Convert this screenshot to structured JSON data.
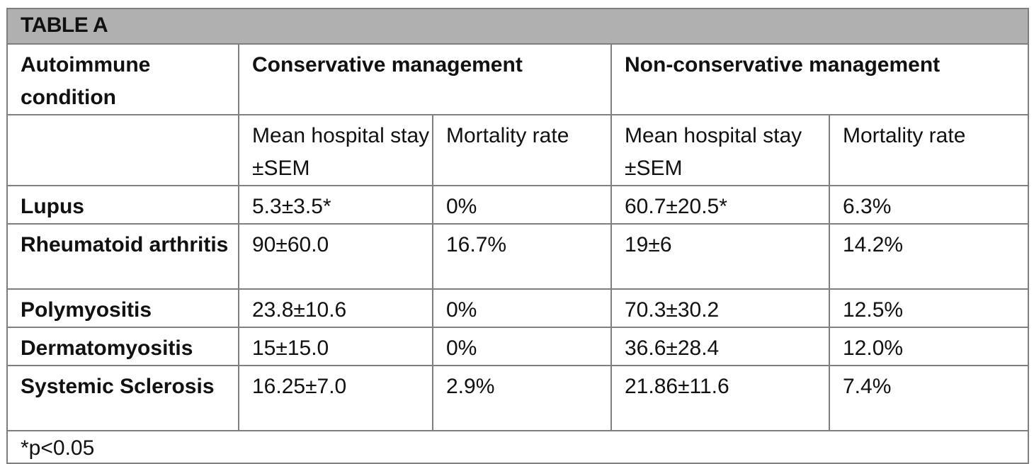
{
  "table": {
    "title": "TABLE A",
    "headers": {
      "condition": "Autoimmune condition",
      "conservative": "Conservative management",
      "nonconservative": "Non-conservative management"
    },
    "subheaders": {
      "cons_stay": "Mean hospital stay ±SEM",
      "cons_mort": "Mortality rate",
      "noncons_stay": "Mean hospital stay ±SEM",
      "noncons_mort": "Mortality rate"
    },
    "rows": [
      {
        "condition": "Lupus",
        "cons_stay": "5.3±3.5*",
        "cons_mort": "0%",
        "noncons_stay": "60.7±20.5*",
        "noncons_mort": "6.3%"
      },
      {
        "condition": "Rheumatoid arthritis",
        "cons_stay": "90±60.0",
        "cons_mort": "16.7%",
        "noncons_stay": "19±6",
        "noncons_mort": "14.2%"
      },
      {
        "condition": "Polymyositis",
        "cons_stay": "23.8±10.6",
        "cons_mort": "0%",
        "noncons_stay": "70.3±30.2",
        "noncons_mort": "12.5%"
      },
      {
        "condition": "Dermatomyositis",
        "cons_stay": "15±15.0",
        "cons_mort": "0%",
        "noncons_stay": "36.6±28.4",
        "noncons_mort": "12.0%"
      },
      {
        "condition": "Systemic Sclerosis",
        "cons_stay": "16.25±7.0",
        "cons_mort": "2.9%",
        "noncons_stay": "21.86±11.6",
        "noncons_mort": "7.4%"
      }
    ],
    "footnote": "*p<0.05"
  }
}
